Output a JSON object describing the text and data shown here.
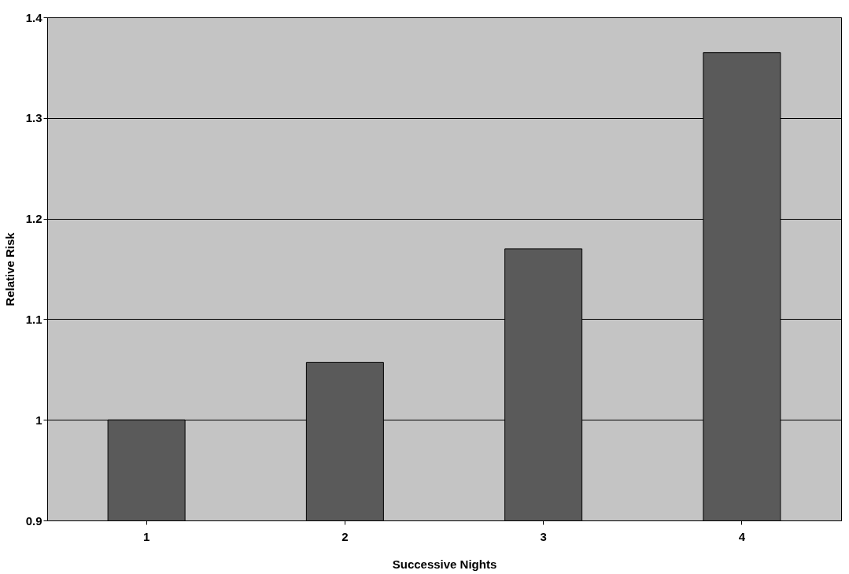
{
  "chart_data": {
    "type": "bar",
    "xlabel": "Successive Nights",
    "ylabel": "Relative Risk",
    "categories": [
      "1",
      "2",
      "3",
      "4"
    ],
    "values": [
      1.0,
      1.057,
      1.17,
      1.365
    ],
    "color": "#5a5a5a",
    "ylim": [
      0.9,
      1.4
    ],
    "yticks": [
      0.9,
      {
        "value": 1,
        "label": "1"
      },
      1.1,
      1.2,
      1.3,
      1.4
    ],
    "grid": "y"
  }
}
